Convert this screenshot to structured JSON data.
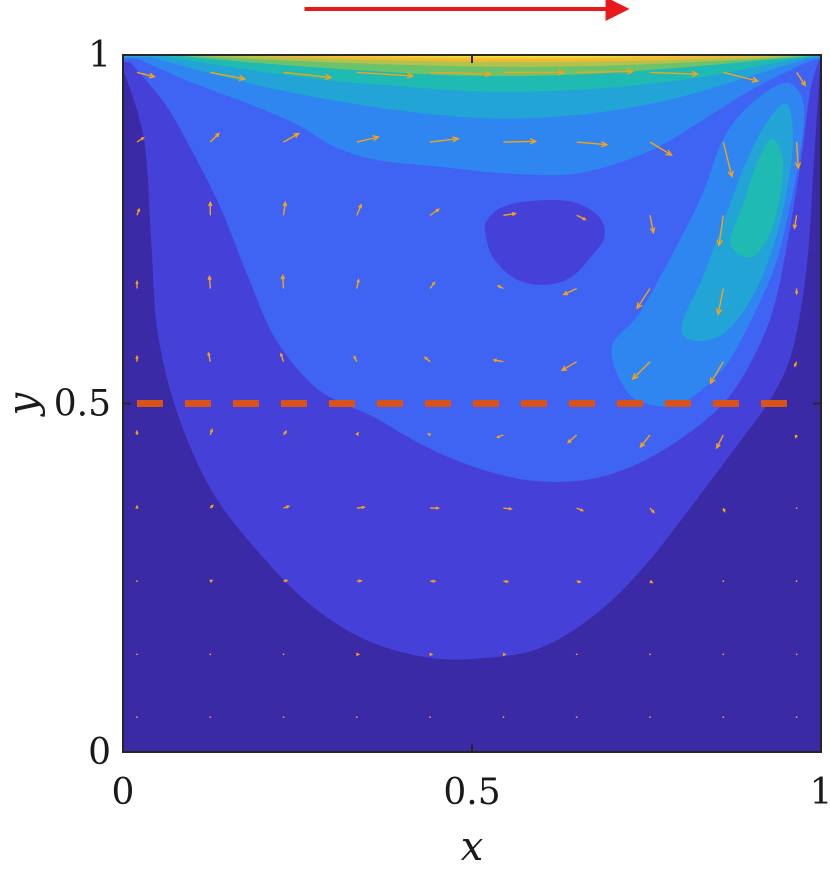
{
  "chart_data": {
    "type": "contour",
    "xlabel": "x",
    "ylabel": "y",
    "xlim": [
      0,
      1
    ],
    "ylim": [
      0,
      1
    ],
    "x_ticks": [
      {
        "value": 0,
        "label": "0"
      },
      {
        "value": 0.5,
        "label": "0.5"
      },
      {
        "value": 1,
        "label": "1"
      }
    ],
    "y_ticks": [
      {
        "value": 0,
        "label": "0"
      },
      {
        "value": 0.5,
        "label": "0.5"
      },
      {
        "value": 1,
        "label": "1"
      }
    ],
    "grid": false,
    "colors": {
      "background": "#3b2aa6",
      "levels": [
        "#3b2aa6",
        "#4540d8",
        "#3f63f2",
        "#2f86f0",
        "#22a4d6",
        "#1fbab2",
        "#6cc36c",
        "#b3c24a",
        "#efba3a",
        "#f5cf2a",
        "#f9e81f"
      ],
      "quiver": "#f5a21a",
      "lid_arrow": "#e8191a",
      "dashed_line": "#d95319"
    },
    "lid_velocity_arrow": {
      "from_x": 0.26,
      "to_x": 0.74,
      "direction": "right"
    },
    "dashed_line": {
      "y": 0.5,
      "x_from": 0.02,
      "x_to": 0.98
    },
    "contour_levels": [
      {
        "level": 1,
        "points": [
          [
            0.0,
            0.98
          ],
          [
            0.03,
            0.88
          ],
          [
            0.04,
            0.74
          ],
          [
            0.05,
            0.6
          ],
          [
            0.08,
            0.48
          ],
          [
            0.13,
            0.37
          ],
          [
            0.2,
            0.28
          ],
          [
            0.27,
            0.21
          ],
          [
            0.35,
            0.16
          ],
          [
            0.44,
            0.135
          ],
          [
            0.52,
            0.135
          ],
          [
            0.6,
            0.15
          ],
          [
            0.68,
            0.2
          ],
          [
            0.75,
            0.27
          ],
          [
            0.82,
            0.36
          ],
          [
            0.88,
            0.44
          ],
          [
            0.93,
            0.51
          ],
          [
            0.96,
            0.58
          ],
          [
            0.98,
            0.7
          ],
          [
            0.99,
            0.85
          ],
          [
            1.0,
            1.0
          ]
        ]
      },
      {
        "level": 2,
        "points": [
          [
            0.01,
            0.99
          ],
          [
            0.06,
            0.93
          ],
          [
            0.1,
            0.86
          ],
          [
            0.14,
            0.78
          ],
          [
            0.18,
            0.68
          ],
          [
            0.22,
            0.59
          ],
          [
            0.28,
            0.52
          ],
          [
            0.36,
            0.48
          ],
          [
            0.43,
            0.44
          ],
          [
            0.5,
            0.41
          ],
          [
            0.58,
            0.39
          ],
          [
            0.66,
            0.39
          ],
          [
            0.73,
            0.41
          ],
          [
            0.8,
            0.45
          ],
          [
            0.86,
            0.5
          ],
          [
            0.9,
            0.56
          ],
          [
            0.93,
            0.63
          ],
          [
            0.95,
            0.72
          ],
          [
            0.97,
            0.84
          ],
          [
            0.985,
            0.95
          ],
          [
            1.0,
            1.0
          ]
        ]
      },
      {
        "level": 3,
        "points": [
          [
            0.02,
            0.995
          ],
          [
            0.1,
            0.96
          ],
          [
            0.18,
            0.93
          ],
          [
            0.25,
            0.9
          ],
          [
            0.3,
            0.87
          ],
          [
            0.36,
            0.85
          ],
          [
            0.45,
            0.84
          ],
          [
            0.55,
            0.83
          ],
          [
            0.65,
            0.83
          ],
          [
            0.75,
            0.86
          ],
          [
            0.82,
            0.9
          ],
          [
            0.9,
            0.95
          ],
          [
            0.98,
            0.99
          ]
        ]
      },
      {
        "level": 4,
        "points": [
          [
            0.04,
            0.997
          ],
          [
            0.12,
            0.975
          ],
          [
            0.2,
            0.955
          ],
          [
            0.3,
            0.935
          ],
          [
            0.4,
            0.92
          ],
          [
            0.5,
            0.91
          ],
          [
            0.6,
            0.91
          ],
          [
            0.7,
            0.92
          ],
          [
            0.8,
            0.94
          ],
          [
            0.9,
            0.97
          ],
          [
            0.98,
            0.995
          ]
        ]
      },
      {
        "level": 5,
        "points": [
          [
            0.06,
            0.998
          ],
          [
            0.16,
            0.982
          ],
          [
            0.28,
            0.965
          ],
          [
            0.4,
            0.955
          ],
          [
            0.5,
            0.948
          ],
          [
            0.6,
            0.948
          ],
          [
            0.72,
            0.955
          ],
          [
            0.84,
            0.97
          ],
          [
            0.94,
            0.99
          ],
          [
            0.99,
            0.998
          ]
        ]
      },
      {
        "level": 6,
        "points": [
          [
            0.08,
            0.999
          ],
          [
            0.2,
            0.988
          ],
          [
            0.34,
            0.978
          ],
          [
            0.5,
            0.97
          ],
          [
            0.65,
            0.972
          ],
          [
            0.8,
            0.982
          ],
          [
            0.92,
            0.993
          ],
          [
            0.99,
            0.999
          ]
        ]
      },
      {
        "level": 7,
        "points": [
          [
            0.1,
            0.999
          ],
          [
            0.24,
            0.992
          ],
          [
            0.4,
            0.986
          ],
          [
            0.55,
            0.983
          ],
          [
            0.7,
            0.985
          ],
          [
            0.86,
            0.992
          ],
          [
            0.96,
            0.998
          ]
        ]
      },
      {
        "level": 8,
        "points": [
          [
            0.13,
            1.0
          ],
          [
            0.28,
            0.995
          ],
          [
            0.45,
            0.991
          ],
          [
            0.6,
            0.99
          ],
          [
            0.75,
            0.992
          ],
          [
            0.9,
            0.997
          ],
          [
            0.98,
            1.0
          ]
        ]
      },
      {
        "level": 9,
        "points": [
          [
            0.18,
            1.0
          ],
          [
            0.35,
            0.997
          ],
          [
            0.5,
            0.995
          ],
          [
            0.66,
            0.995
          ],
          [
            0.82,
            0.998
          ],
          [
            0.95,
            1.0
          ]
        ]
      },
      {
        "level": 10,
        "points": [
          [
            0.26,
            1.0
          ],
          [
            0.42,
            0.998
          ],
          [
            0.55,
            0.997
          ],
          [
            0.7,
            0.998
          ],
          [
            0.86,
            1.0
          ]
        ]
      }
    ],
    "vortex_core": {
      "level": 1,
      "points": [
        [
          0.52,
          0.74
        ],
        [
          0.53,
          0.71
        ],
        [
          0.56,
          0.68
        ],
        [
          0.6,
          0.67
        ],
        [
          0.64,
          0.68
        ],
        [
          0.67,
          0.71
        ],
        [
          0.69,
          0.74
        ],
        [
          0.68,
          0.77
        ],
        [
          0.64,
          0.79
        ],
        [
          0.58,
          0.79
        ],
        [
          0.54,
          0.78
        ],
        [
          0.52,
          0.76
        ]
      ]
    },
    "corner_jet": [
      {
        "level": 3,
        "points": [
          [
            0.7,
            0.58
          ],
          [
            0.74,
            0.63
          ],
          [
            0.79,
            0.72
          ],
          [
            0.83,
            0.8
          ],
          [
            0.86,
            0.88
          ],
          [
            0.9,
            0.93
          ],
          [
            0.95,
            0.96
          ],
          [
            0.975,
            0.93
          ],
          [
            0.97,
            0.86
          ],
          [
            0.955,
            0.78
          ],
          [
            0.935,
            0.7
          ],
          [
            0.9,
            0.62
          ],
          [
            0.86,
            0.55
          ],
          [
            0.8,
            0.5
          ],
          [
            0.75,
            0.5
          ],
          [
            0.72,
            0.52
          ]
        ]
      },
      {
        "level": 4,
        "points": [
          [
            0.8,
            0.61
          ],
          [
            0.83,
            0.68
          ],
          [
            0.86,
            0.76
          ],
          [
            0.89,
            0.84
          ],
          [
            0.92,
            0.9
          ],
          [
            0.95,
            0.93
          ],
          [
            0.96,
            0.88
          ],
          [
            0.95,
            0.8
          ],
          [
            0.93,
            0.72
          ],
          [
            0.9,
            0.65
          ],
          [
            0.86,
            0.6
          ],
          [
            0.82,
            0.59
          ]
        ]
      },
      {
        "level": 5,
        "points": [
          [
            0.87,
            0.73
          ],
          [
            0.89,
            0.79
          ],
          [
            0.91,
            0.85
          ],
          [
            0.93,
            0.88
          ],
          [
            0.945,
            0.85
          ],
          [
            0.94,
            0.79
          ],
          [
            0.925,
            0.74
          ],
          [
            0.9,
            0.71
          ]
        ]
      }
    ],
    "quiver_grid": {
      "x": [
        0.02,
        0.125,
        0.23,
        0.335,
        0.44,
        0.545,
        0.65,
        0.755,
        0.86,
        0.965
      ],
      "y": [
        0.05,
        0.14,
        0.245,
        0.35,
        0.455,
        0.56,
        0.665,
        0.77,
        0.875,
        0.975
      ],
      "u": [
        [
          0.0,
          0.0,
          0.0,
          0.0,
          0.0,
          0.0,
          0.0,
          0.0,
          0.0,
          0.0
        ],
        [
          0.0,
          0.002,
          0.003,
          0.004,
          0.004,
          0.004,
          0.003,
          0.002,
          0.001,
          0.0
        ],
        [
          0.0,
          0.004,
          0.008,
          0.01,
          0.011,
          0.01,
          0.008,
          0.005,
          0.002,
          0.0
        ],
        [
          0.0,
          0.006,
          0.012,
          0.017,
          0.019,
          0.018,
          0.014,
          0.009,
          0.003,
          0.0
        ],
        [
          0.0,
          0.004,
          0.006,
          0.003,
          -0.004,
          -0.014,
          -0.02,
          -0.022,
          -0.015,
          -0.002
        ],
        [
          0.0,
          -0.004,
          -0.006,
          -0.006,
          -0.012,
          -0.022,
          -0.034,
          -0.04,
          -0.03,
          -0.004
        ],
        [
          0.0,
          -0.002,
          -0.002,
          0.004,
          0.01,
          -0.012,
          -0.03,
          -0.03,
          -0.012,
          0.0
        ],
        [
          0.005,
          0.0,
          0.004,
          0.01,
          0.02,
          0.028,
          0.02,
          0.008,
          -0.01,
          -0.005
        ],
        [
          0.015,
          0.02,
          0.035,
          0.05,
          0.065,
          0.075,
          0.07,
          0.05,
          0.02,
          0.004
        ],
        [
          0.04,
          0.08,
          0.11,
          0.13,
          0.14,
          0.14,
          0.13,
          0.11,
          0.08,
          0.02
        ]
      ],
      "v": [
        [
          0.0,
          0.0,
          0.0,
          0.0,
          0.0,
          0.0,
          0.0,
          0.0,
          0.0,
          0.0
        ],
        [
          0.0,
          0.001,
          0.001,
          0.0,
          0.0,
          0.0,
          -0.001,
          -0.001,
          -0.001,
          0.0
        ],
        [
          0.0,
          0.002,
          0.002,
          0.001,
          0.0,
          -0.001,
          -0.002,
          -0.003,
          -0.002,
          0.0
        ],
        [
          0.004,
          0.006,
          0.004,
          0.002,
          0.0,
          -0.002,
          -0.006,
          -0.01,
          -0.008,
          -0.002
        ],
        [
          0.008,
          0.012,
          0.008,
          0.004,
          0.002,
          -0.006,
          -0.018,
          -0.028,
          -0.03,
          -0.006
        ],
        [
          0.012,
          0.02,
          0.018,
          0.012,
          0.01,
          0.004,
          -0.02,
          -0.04,
          -0.05,
          -0.01
        ],
        [
          0.016,
          0.028,
          0.03,
          0.02,
          0.014,
          0.006,
          -0.014,
          -0.046,
          -0.06,
          -0.012
        ],
        [
          0.014,
          0.03,
          0.03,
          0.024,
          0.014,
          0.004,
          -0.01,
          -0.04,
          -0.07,
          -0.03
        ],
        [
          0.01,
          0.02,
          0.02,
          0.012,
          0.008,
          0.002,
          -0.006,
          -0.03,
          -0.08,
          -0.06
        ],
        [
          -0.01,
          -0.015,
          -0.012,
          -0.008,
          -0.004,
          0.0,
          0.002,
          -0.004,
          -0.02,
          -0.03
        ]
      ]
    }
  }
}
